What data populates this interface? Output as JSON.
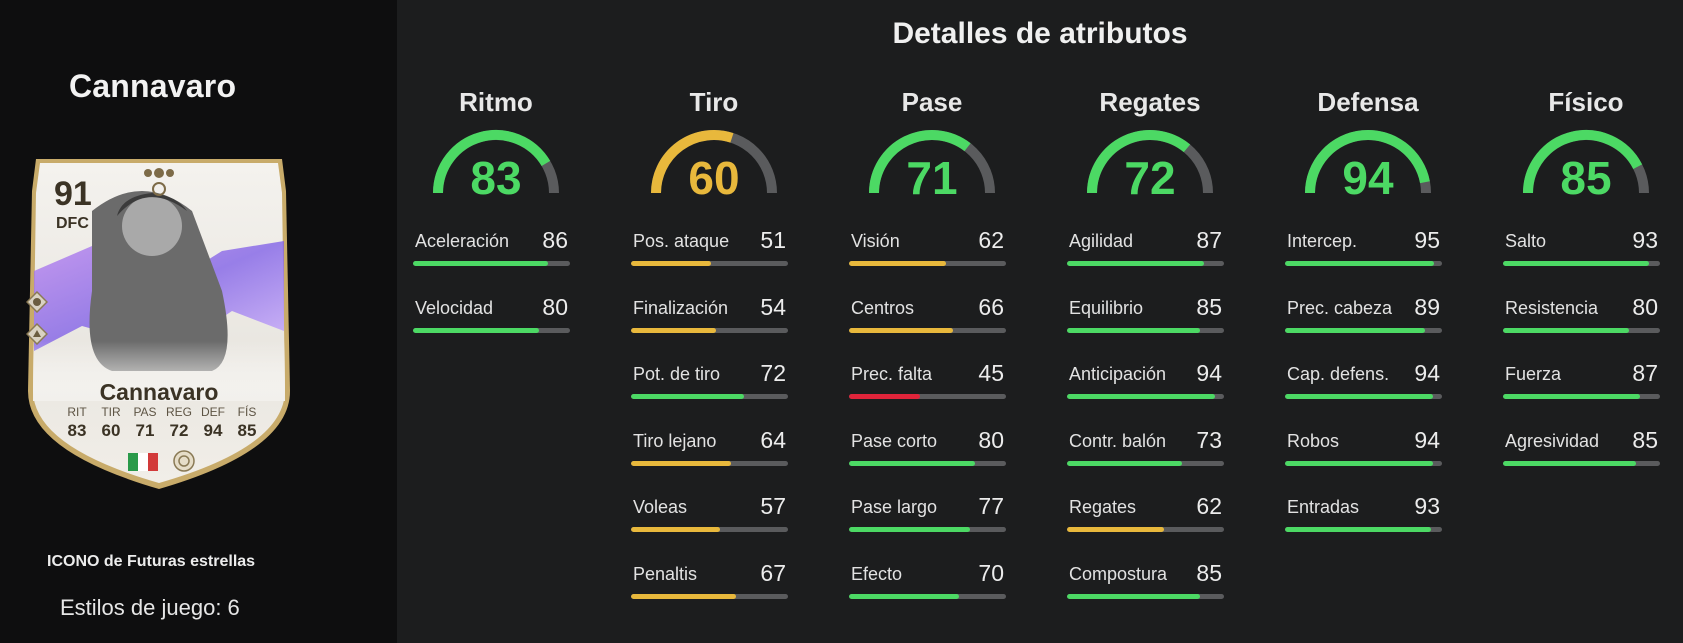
{
  "player": {
    "name": "Cannavaro",
    "card_type": "ICONO de Futuras estrellas",
    "playstyles_label": "Estilos de juego:",
    "playstyles_count": "6"
  },
  "card": {
    "overall": "91",
    "position": "DFC",
    "name": "Cannavaro",
    "stats": [
      {
        "label": "RIT",
        "value": "83"
      },
      {
        "label": "TIR",
        "value": "60"
      },
      {
        "label": "PAS",
        "value": "71"
      },
      {
        "label": "REG",
        "value": "72"
      },
      {
        "label": "DEF",
        "value": "94"
      },
      {
        "label": "FÍS",
        "value": "85"
      }
    ]
  },
  "section_title": "Detalles de atributos",
  "colors": {
    "green": "#4cd964",
    "yellow": "#e8b83c",
    "red": "#e0243a",
    "track": "#5a5b5d"
  },
  "categories": [
    {
      "name": "Ritmo",
      "value": 83,
      "stats": [
        {
          "label": "Aceleración",
          "value": 86
        },
        {
          "label": "Velocidad",
          "value": 80
        }
      ]
    },
    {
      "name": "Tiro",
      "value": 60,
      "stats": [
        {
          "label": "Pos. ataque",
          "value": 51
        },
        {
          "label": "Finalización",
          "value": 54
        },
        {
          "label": "Pot. de tiro",
          "value": 72
        },
        {
          "label": "Tiro lejano",
          "value": 64
        },
        {
          "label": "Voleas",
          "value": 57
        },
        {
          "label": "Penaltis",
          "value": 67
        }
      ]
    },
    {
      "name": "Pase",
      "value": 71,
      "stats": [
        {
          "label": "Visión",
          "value": 62
        },
        {
          "label": "Centros",
          "value": 66
        },
        {
          "label": "Prec. falta",
          "value": 45
        },
        {
          "label": "Pase corto",
          "value": 80
        },
        {
          "label": "Pase largo",
          "value": 77
        },
        {
          "label": "Efecto",
          "value": 70
        }
      ]
    },
    {
      "name": "Regates",
      "value": 72,
      "stats": [
        {
          "label": "Agilidad",
          "value": 87
        },
        {
          "label": "Equilibrio",
          "value": 85
        },
        {
          "label": "Anticipación",
          "value": 94
        },
        {
          "label": "Contr. balón",
          "value": 73
        },
        {
          "label": "Regates",
          "value": 62
        },
        {
          "label": "Compostura",
          "value": 85
        }
      ]
    },
    {
      "name": "Defensa",
      "value": 94,
      "stats": [
        {
          "label": "Intercep.",
          "value": 95
        },
        {
          "label": "Prec. cabeza",
          "value": 89
        },
        {
          "label": "Cap. defens.",
          "value": 94
        },
        {
          "label": "Robos",
          "value": 94
        },
        {
          "label": "Entradas",
          "value": 93
        }
      ]
    },
    {
      "name": "Físico",
      "value": 85,
      "stats": [
        {
          "label": "Salto",
          "value": 93
        },
        {
          "label": "Resistencia",
          "value": 80
        },
        {
          "label": "Fuerza",
          "value": 87
        },
        {
          "label": "Agresividad",
          "value": 85
        }
      ]
    }
  ]
}
